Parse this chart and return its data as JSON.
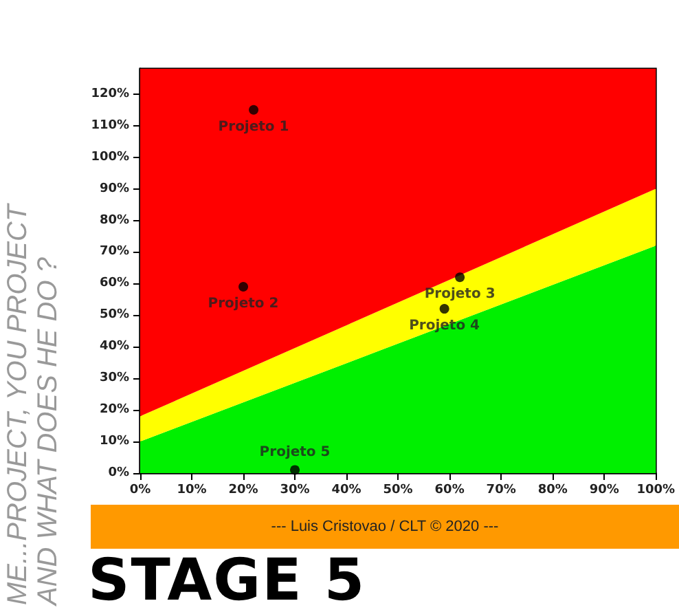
{
  "chart_data": {
    "type": "scatter",
    "title": "STAGE 5",
    "annotations": [
      "ME...PROJECT, YOU PROJECT",
      "AND WHAT DOES HE DO ?",
      "--- Luis Cristovao / CLT © 2020 ---"
    ],
    "stacked": true,
    "series": [
      {
        "type": "area",
        "color": "#00f000",
        "x": [
          0,
          100
        ],
        "values": [
          10,
          72
        ]
      },
      {
        "type": "area",
        "color": "#ffff00",
        "x": [
          0,
          100
        ],
        "values": [
          8,
          18
        ]
      },
      {
        "type": "area",
        "color": "#ff0000",
        "x": [
          0,
          100
        ],
        "values": [
          110,
          38
        ]
      },
      {
        "color": "#000000",
        "marker": "circle",
        "x": [
          22,
          20,
          62,
          59,
          30
        ],
        "values": [
          115,
          59,
          62,
          52,
          1
        ],
        "value_labels": [
          "Projeto 1",
          "Projeto 2",
          "Projeto 3",
          "Projeto 4",
          "Projeto 5"
        ]
      }
    ],
    "xlim": [
      0,
      100
    ],
    "ylim": [
      0,
      128
    ],
    "xticks": [
      {
        "value": 0,
        "label": "0%"
      },
      {
        "value": 10,
        "label": "10%"
      },
      {
        "value": 20,
        "label": "20%"
      },
      {
        "value": 30,
        "label": "30%"
      },
      {
        "value": 40,
        "label": "40%"
      },
      {
        "value": 50,
        "label": "50%"
      },
      {
        "value": 60,
        "label": "60%"
      },
      {
        "value": 70,
        "label": "70%"
      },
      {
        "value": 80,
        "label": "80%"
      },
      {
        "value": 90,
        "label": "90%"
      },
      {
        "value": 100,
        "label": "100%"
      }
    ],
    "yticks": [
      {
        "value": 0,
        "label": "0%"
      },
      {
        "value": 10,
        "label": "10%"
      },
      {
        "value": 20,
        "label": "20%"
      },
      {
        "value": 30,
        "label": "30%"
      },
      {
        "value": 40,
        "label": "40%"
      },
      {
        "value": 50,
        "label": "50%"
      },
      {
        "value": 60,
        "label": "60%"
      },
      {
        "value": 70,
        "label": "70%"
      },
      {
        "value": 80,
        "label": "80%"
      },
      {
        "value": 90,
        "label": "90%"
      },
      {
        "value": 100,
        "label": "100%"
      },
      {
        "value": 110,
        "label": "110%"
      },
      {
        "value": 120,
        "label": "120%"
      }
    ],
    "grid": false
  }
}
